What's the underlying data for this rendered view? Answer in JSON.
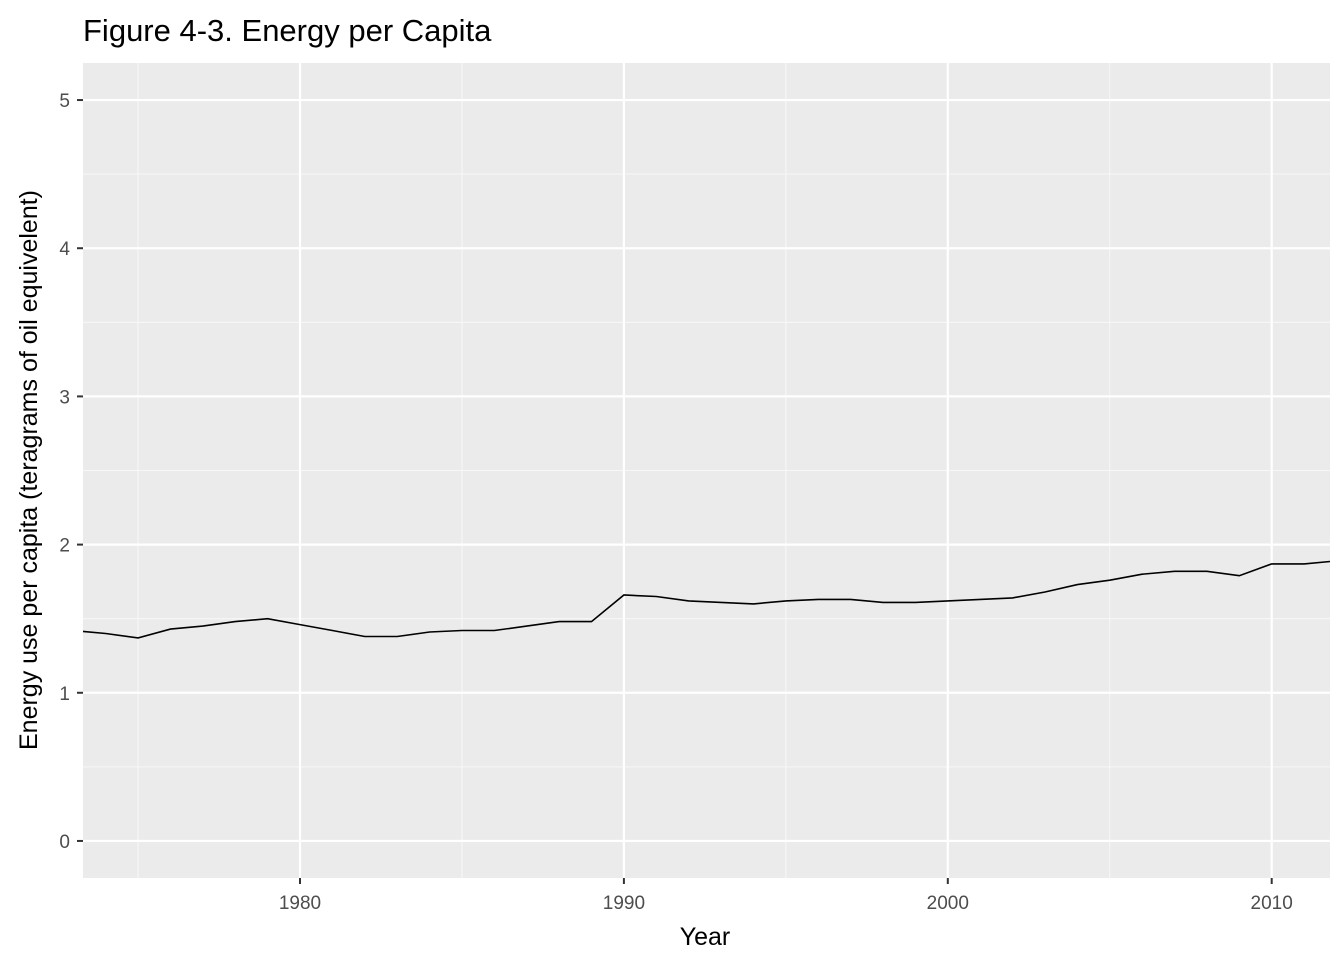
{
  "chart_data": {
    "type": "line",
    "title": "Figure 4-3. Energy per Capita",
    "xlabel": "Year",
    "ylabel": "Energy use per capita (teragrams of oil equivelent)",
    "xlim": [
      1973.3,
      1971.6
    ],
    "xlim_note": "",
    "x_range": [
      1973.3,
      2011.8
    ],
    "ylim": [
      -0.25,
      5.25
    ],
    "x_ticks": [
      1980,
      1990,
      2000,
      2010
    ],
    "x_tick_labels": [
      "1980",
      "1990",
      "2000",
      "2010"
    ],
    "y_ticks": [
      0,
      1,
      2,
      3,
      4,
      5
    ],
    "y_tick_labels": [
      "0",
      "1",
      "2",
      "3",
      "4",
      "5"
    ],
    "grid": true,
    "legend": "none",
    "colors": {
      "panel_background": "#ebebeb",
      "grid_major": "#ffffff",
      "grid_minor": "#f7f7f7",
      "line": "#000000"
    },
    "x": [
      1973,
      1974,
      1975,
      1976,
      1977,
      1978,
      1979,
      1980,
      1981,
      1982,
      1983,
      1984,
      1985,
      1986,
      1987,
      1988,
      1989,
      1990,
      1991,
      1992,
      1993,
      1994,
      1995,
      1996,
      1997,
      1998,
      1999,
      2000,
      2001,
      2002,
      2003,
      2004,
      2005,
      2006,
      2007,
      2008,
      2009,
      2010,
      2011,
      2012
    ],
    "series": [
      {
        "values": [
          1.42,
          1.4,
          1.37,
          1.43,
          1.45,
          1.48,
          1.5,
          1.46,
          1.42,
          1.38,
          1.38,
          1.41,
          1.42,
          1.42,
          1.45,
          1.48,
          1.48,
          1.66,
          1.65,
          1.62,
          1.61,
          1.6,
          1.62,
          1.63,
          1.63,
          1.61,
          1.61,
          1.62,
          1.63,
          1.64,
          1.68,
          1.73,
          1.76,
          1.8,
          1.82,
          1.82,
          1.79,
          1.87,
          1.87,
          1.89
        ]
      }
    ]
  }
}
